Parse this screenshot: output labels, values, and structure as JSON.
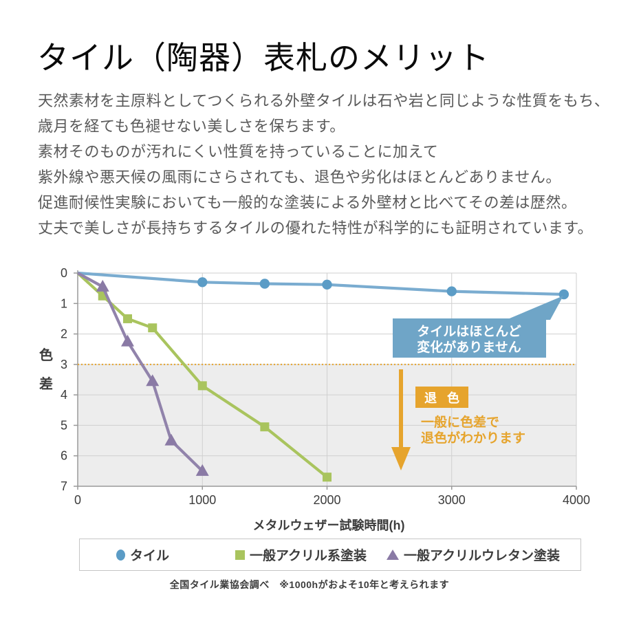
{
  "page": {
    "title": "タイル（陶器）表札のメリット",
    "body_lines": [
      "天然素材を主原料としてつくられる外壁タイルは石や岩と同じような性質をもち、",
      "歳月を経ても色褪せない美しさを保ちます。",
      "素材そのものが汚れにくい性質を持っていることに加えて",
      "紫外線や悪天候の風雨にさらされても、退色や劣化はほとんどありません。",
      "促進耐候性実験においても一般的な塗装による外壁材と比べてその差は歴然。",
      "丈夫で美しさが長持ちするタイルの優れた特性が科学的にも証明されています。"
    ],
    "footer": "全国タイル業協会調べ　※1000hがおよそ10年と考えられます"
  },
  "chart_data": {
    "type": "line",
    "xlabel": "メタルウェザー試験時間(h)",
    "ylabel": "色差",
    "ylabel_chars": [
      "色",
      "差"
    ],
    "xlim": [
      0,
      4000
    ],
    "ylim": [
      0,
      7
    ],
    "y_inverted": true,
    "x_ticks": [
      0,
      1000,
      2000,
      3000,
      4000
    ],
    "y_ticks": [
      0,
      1,
      2,
      3,
      4,
      5,
      6,
      7
    ],
    "grid": true,
    "legend_position": "bottom",
    "colors": {
      "grid": "#cfcfcf",
      "axis": "#999999",
      "shade_below_threshold": "#ededed",
      "threshold_orange": "#e6a42d",
      "callout_blue": "#6fa5c7"
    },
    "threshold": {
      "y": 3,
      "color": "#e6a42d"
    },
    "series": [
      {
        "name": "タイル",
        "marker": "circle",
        "color": "#5b9cc6",
        "line_color": "#7aacd0",
        "points": [
          [
            0,
            0
          ],
          [
            1000,
            0.3
          ],
          [
            1500,
            0.35
          ],
          [
            2000,
            0.38
          ],
          [
            3000,
            0.6
          ],
          [
            3900,
            0.7
          ]
        ]
      },
      {
        "name": "一般アクリル系塗装",
        "marker": "square",
        "color": "#a9c45e",
        "line_color": "#a9c45e",
        "points": [
          [
            0,
            0
          ],
          [
            200,
            0.75
          ],
          [
            400,
            1.5
          ],
          [
            600,
            1.8
          ],
          [
            1000,
            3.7
          ],
          [
            1500,
            5.05
          ],
          [
            2000,
            6.7
          ]
        ]
      },
      {
        "name": "一般アクリルウレタン塗装",
        "marker": "triangle",
        "color": "#8a7aa5",
        "line_color": "#9183ab",
        "points": [
          [
            0,
            0
          ],
          [
            200,
            0.45
          ],
          [
            400,
            2.25
          ],
          [
            600,
            3.55
          ],
          [
            750,
            5.5
          ],
          [
            1000,
            6.5
          ]
        ]
      }
    ],
    "annotations": {
      "callout": {
        "lines": [
          "タイルはほとんど",
          "変化がありません"
        ],
        "bg": "#6fa5c7"
      },
      "badge": {
        "label": "退 色",
        "bg": "#e6a42d"
      },
      "note_lines": [
        "一般に色差で",
        "退色がわかります"
      ],
      "note_color": "#e6a42d",
      "arrow_color": "#e6a42d"
    }
  }
}
